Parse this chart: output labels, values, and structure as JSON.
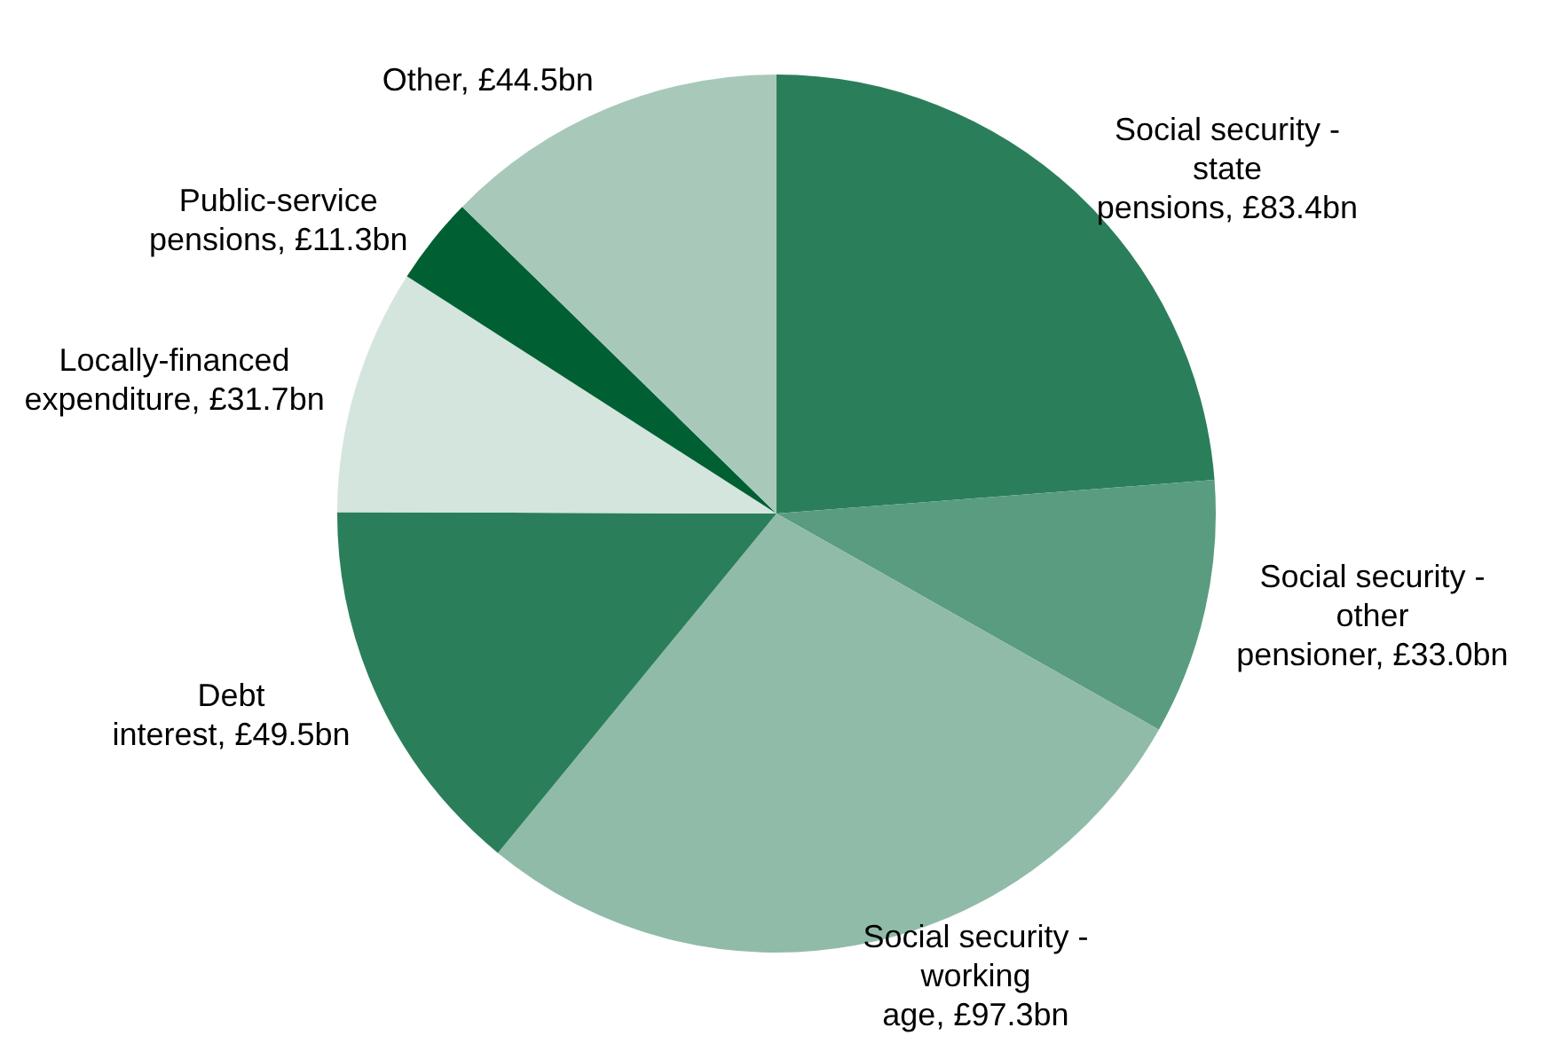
{
  "chart_data": {
    "type": "pie",
    "categories": [
      "Social security - state pensions",
      "Social security - other pensioner",
      "Social security - working age",
      "Debt interest",
      "Locally-financed expenditure",
      "Public-service pensions",
      "Other"
    ],
    "values": [
      83.4,
      33.0,
      97.3,
      49.5,
      31.7,
      11.3,
      44.5
    ],
    "value_labels": [
      "£83.4bn",
      "£33.0bn",
      "£97.3bn",
      "£49.5bn",
      "£31.7bn",
      "£11.3bn",
      "£44.5bn"
    ],
    "colors": [
      "#2a7f5a",
      "#5a9c80",
      "#90bba8",
      "#2a7f5a",
      "#d4e5dd",
      "#006034",
      "#a8c9ba"
    ]
  }
}
